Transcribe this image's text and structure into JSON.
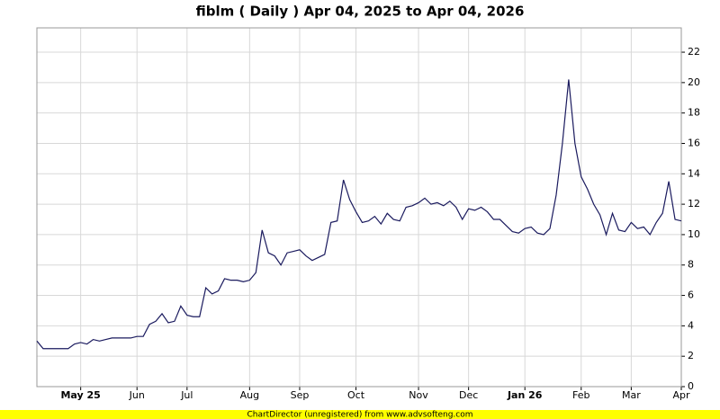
{
  "chart_data": {
    "type": "line",
    "title": "fiblm ( Daily ) Apr 04, 2025 to Apr 04, 2026",
    "watermark": "ChartDirector (unregistered) from www.advsofteng.com",
    "categories": [
      null,
      null,
      null,
      null,
      null,
      null,
      null,
      "May 25",
      null,
      null,
      null,
      null,
      null,
      null,
      null,
      null,
      "Jun",
      null,
      null,
      null,
      null,
      null,
      null,
      null,
      "Jul",
      null,
      null,
      null,
      null,
      null,
      null,
      null,
      null,
      null,
      "Aug",
      null,
      null,
      null,
      null,
      null,
      null,
      null,
      "Sep",
      null,
      null,
      null,
      null,
      null,
      null,
      null,
      null,
      "Oct",
      null,
      null,
      null,
      null,
      null,
      null,
      null,
      null,
      null,
      "Nov",
      null,
      null,
      null,
      null,
      null,
      null,
      null,
      "Dec",
      null,
      null,
      null,
      null,
      null,
      null,
      null,
      null,
      "Jan 26",
      null,
      null,
      null,
      null,
      null,
      null,
      null,
      null,
      "Feb",
      null,
      null,
      null,
      null,
      null,
      null,
      null,
      "Mar",
      null,
      null,
      null,
      null,
      null,
      null,
      null,
      "Apr"
    ],
    "series": [
      {
        "color": "#1a1a5e",
        "values": [
          3.0,
          2.5,
          2.5,
          2.5,
          2.5,
          2.5,
          2.8,
          2.9,
          2.8,
          3.1,
          3.0,
          3.1,
          3.2,
          3.2,
          3.2,
          3.2,
          3.3,
          3.3,
          4.1,
          4.3,
          4.8,
          4.2,
          4.3,
          5.3,
          4.7,
          4.6,
          4.6,
          6.5,
          6.1,
          6.3,
          7.1,
          7.0,
          7.0,
          6.9,
          7.0,
          7.5,
          10.3,
          8.8,
          8.6,
          8.0,
          8.8,
          8.9,
          9.0,
          8.6,
          8.3,
          8.5,
          8.7,
          10.8,
          10.9,
          13.6,
          12.3,
          11.5,
          10.8,
          10.9,
          11.2,
          10.7,
          11.4,
          11.0,
          10.9,
          11.8,
          11.9,
          12.1,
          12.4,
          12.0,
          12.1,
          11.9,
          12.2,
          11.8,
          11.0,
          11.7,
          11.6,
          11.8,
          11.5,
          11.0,
          11.0,
          10.6,
          10.2,
          10.1,
          10.4,
          10.5,
          10.1,
          10.0,
          10.4,
          12.6,
          16.0,
          20.2,
          16.0,
          13.8,
          13.0,
          12.0,
          11.3,
          10.0,
          11.4,
          10.3,
          10.2,
          10.8,
          10.4,
          10.5,
          10.0,
          10.8,
          11.4,
          13.5,
          11.0,
          10.9
        ]
      }
    ],
    "ylim": [
      0,
      23.6
    ],
    "yticks": [
      0,
      2,
      4,
      6,
      8,
      10,
      12,
      14,
      16,
      18,
      20,
      22
    ],
    "grid": true
  }
}
